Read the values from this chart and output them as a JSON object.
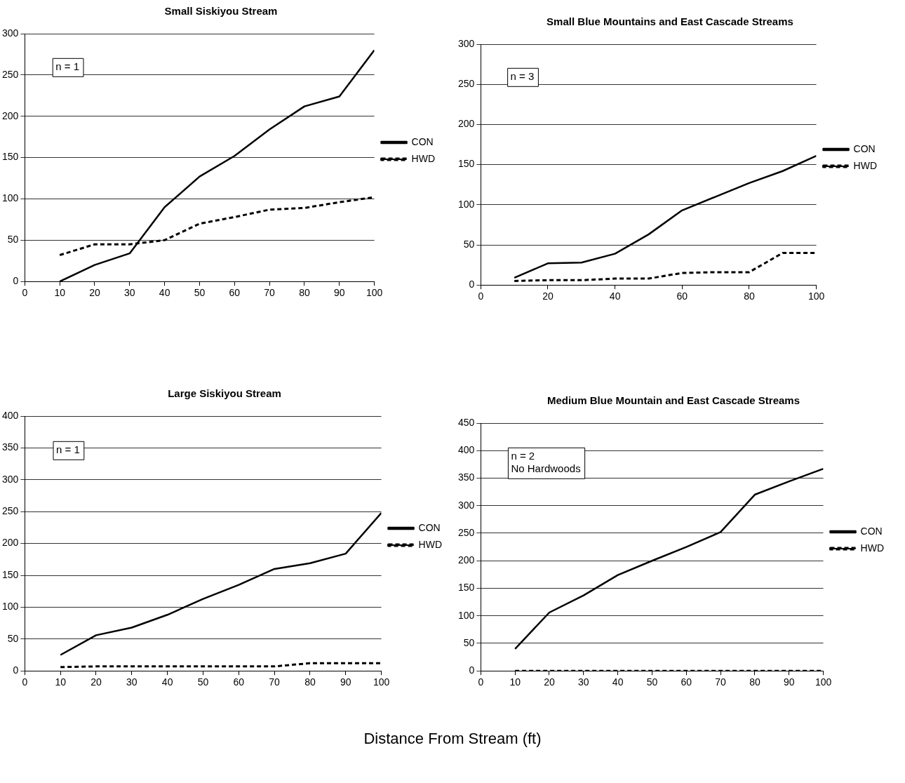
{
  "chart_data": [
    {
      "type": "line",
      "title": "Small Siskiyou Stream",
      "x": [
        10,
        20,
        30,
        40,
        50,
        60,
        70,
        80,
        90,
        100
      ],
      "series": [
        {
          "name": "CON",
          "color": "#000000",
          "line_style": "solid",
          "values": [
            0,
            20,
            34,
            90,
            127,
            152,
            184,
            212,
            224,
            280
          ]
        },
        {
          "name": "HWD",
          "color": "#000000",
          "line_style": "dashed",
          "values": [
            32,
            45,
            45,
            50,
            70,
            78,
            87,
            89,
            96,
            102
          ]
        }
      ],
      "xlim": [
        0,
        100
      ],
      "xticks": [
        0,
        10,
        20,
        30,
        40,
        50,
        60,
        70,
        80,
        90,
        100
      ],
      "ylim": [
        0,
        300
      ],
      "yticks": [
        0,
        50,
        100,
        150,
        200,
        250,
        300
      ],
      "grid": "y",
      "legend": "right",
      "marker": "none",
      "annotations": [
        "n = 1"
      ]
    },
    {
      "type": "line",
      "title": "Small Blue Mountains and East Cascade Streams",
      "x": [
        10,
        20,
        30,
        40,
        50,
        60,
        70,
        80,
        90,
        100
      ],
      "series": [
        {
          "name": "CON",
          "color": "#000000",
          "line_style": "solid",
          "values": [
            9,
            27,
            28,
            39,
            63,
            93,
            110,
            127,
            142,
            161
          ]
        },
        {
          "name": "HWD",
          "color": "#000000",
          "line_style": "dashed",
          "values": [
            5,
            6,
            6,
            8,
            8,
            15,
            16,
            16,
            40,
            40
          ]
        }
      ],
      "xlim": [
        0,
        100
      ],
      "xticks": [
        0,
        20,
        40,
        60,
        80,
        100
      ],
      "ylim": [
        0,
        300
      ],
      "yticks": [
        0,
        50,
        100,
        150,
        200,
        250,
        300
      ],
      "grid": "y",
      "legend": "right",
      "marker": "none",
      "annotations": [
        "n = 3"
      ]
    },
    {
      "type": "line",
      "title": "Large Siskiyou Stream",
      "x": [
        10,
        20,
        30,
        40,
        50,
        60,
        70,
        80,
        90,
        100
      ],
      "series": [
        {
          "name": "CON",
          "color": "#000000",
          "line_style": "solid",
          "values": [
            25,
            56,
            68,
            88,
            113,
            135,
            160,
            169,
            184,
            248
          ]
        },
        {
          "name": "HWD",
          "color": "#000000",
          "line_style": "dashed",
          "values": [
            6,
            7,
            7,
            7,
            7,
            7,
            7,
            12,
            12,
            12
          ]
        }
      ],
      "xlim": [
        0,
        100
      ],
      "xticks": [
        0,
        10,
        20,
        30,
        40,
        50,
        60,
        70,
        80,
        90,
        100
      ],
      "ylim": [
        0,
        400
      ],
      "yticks": [
        0,
        50,
        100,
        150,
        200,
        250,
        300,
        350,
        400
      ],
      "grid": "y",
      "legend": "right",
      "marker": "none",
      "annotations": [
        "n = 1"
      ]
    },
    {
      "type": "line",
      "title": "Medium Blue Mountain and East Cascade Streams",
      "x": [
        10,
        20,
        30,
        40,
        50,
        60,
        70,
        80,
        90,
        100
      ],
      "series": [
        {
          "name": "CON",
          "color": "#000000",
          "line_style": "solid",
          "values": [
            40,
            106,
            137,
            174,
            200,
            225,
            252,
            320,
            344,
            367
          ]
        },
        {
          "name": "HWD",
          "color": "#000000",
          "line_style": "dashed",
          "values": [
            0,
            0,
            0,
            0,
            0,
            0,
            0,
            0,
            0,
            0
          ]
        }
      ],
      "xlim": [
        0,
        100
      ],
      "xticks": [
        0,
        10,
        20,
        30,
        40,
        50,
        60,
        70,
        80,
        90,
        100
      ],
      "ylim": [
        0,
        450
      ],
      "yticks": [
        0,
        50,
        100,
        150,
        200,
        250,
        300,
        350,
        400,
        450
      ],
      "grid": "y",
      "legend": "right",
      "marker": "none",
      "xlabel": "Distance From Stream (ft)",
      "annotations": [
        "n = 2\nNo Hardwoods"
      ]
    }
  ]
}
